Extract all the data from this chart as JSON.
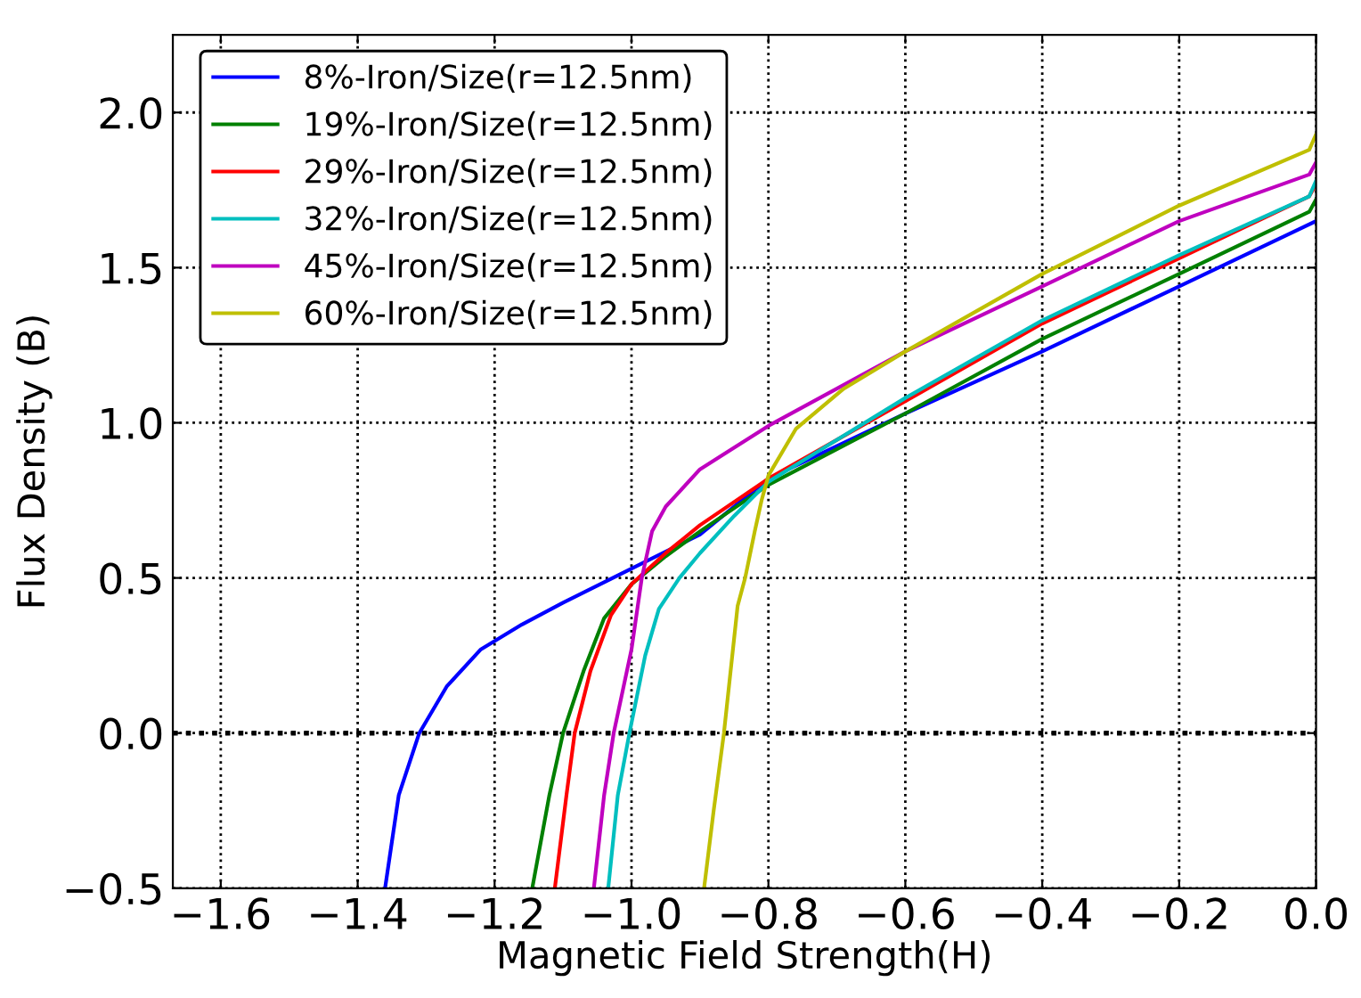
{
  "chart_data": {
    "type": "line",
    "xlabel": "Magnetic Field Strength(H)",
    "ylabel": "Flux Density (B)",
    "xlim": [
      -1.67,
      0.0
    ],
    "ylim": [
      -0.5,
      2.25
    ],
    "xticks": [
      {
        "value": -1.6,
        "label": "−1.6"
      },
      {
        "value": -1.4,
        "label": "−1.4"
      },
      {
        "value": -1.2,
        "label": "−1.2"
      },
      {
        "value": -1.0,
        "label": "−1.0"
      },
      {
        "value": -0.8,
        "label": "−0.8"
      },
      {
        "value": -0.6,
        "label": "−0.6"
      },
      {
        "value": -0.4,
        "label": "−0.4"
      },
      {
        "value": -0.2,
        "label": "−0.2"
      },
      {
        "value": 0.0,
        "label": "0.0"
      }
    ],
    "yticks": [
      {
        "value": -0.5,
        "label": "−0.5"
      },
      {
        "value": 0.0,
        "label": "0.0"
      },
      {
        "value": 0.5,
        "label": "0.5"
      },
      {
        "value": 1.0,
        "label": "1.0"
      },
      {
        "value": 1.5,
        "label": "1.5"
      },
      {
        "value": 2.0,
        "label": "2.0"
      }
    ],
    "grid": true,
    "legend": "top left",
    "marker": "none",
    "line_style": "solid",
    "ref_lines": [
      {
        "axis": "y",
        "value": 0,
        "color": "#000000",
        "line_style": "dotted"
      }
    ],
    "series": [
      {
        "name": "8%-Iron/Size(r=12.5nm)",
        "color": "#0000ff",
        "x": [
          -1.36,
          -1.34,
          -1.31,
          -1.27,
          -1.22,
          -1.16,
          -1.1,
          -1.0,
          -0.9,
          -0.8,
          -0.6,
          -0.4,
          -0.2,
          0.0
        ],
        "values": [
          -0.5,
          -0.2,
          0.0,
          0.15,
          0.27,
          0.35,
          0.42,
          0.53,
          0.64,
          0.82,
          1.03,
          1.23,
          1.44,
          1.65
        ]
      },
      {
        "name": "19%-Iron/Size(r=12.5nm)",
        "color": "#008000",
        "x": [
          -1.145,
          -1.12,
          -1.1,
          -1.07,
          -1.04,
          -1.0,
          -0.95,
          -0.9,
          -0.8,
          -0.6,
          -0.4,
          -0.2,
          -0.01,
          0.0
        ],
        "values": [
          -0.5,
          -0.2,
          0.0,
          0.2,
          0.37,
          0.48,
          0.57,
          0.65,
          0.8,
          1.03,
          1.27,
          1.48,
          1.68,
          1.72
        ]
      },
      {
        "name": "29%-Iron/Size(r=12.5nm)",
        "color": "#ff0000",
        "x": [
          -1.112,
          -1.095,
          -1.083,
          -1.06,
          -1.03,
          -1.0,
          -0.95,
          -0.9,
          -0.8,
          -0.6,
          -0.4,
          -0.2,
          -0.01,
          0.0
        ],
        "values": [
          -0.5,
          -0.2,
          0.0,
          0.2,
          0.38,
          0.48,
          0.58,
          0.67,
          0.82,
          1.07,
          1.32,
          1.53,
          1.73,
          1.77
        ]
      },
      {
        "name": "32%-Iron/Size(r=12.5nm)",
        "color": "#00bfbf",
        "x": [
          -1.034,
          -1.02,
          -1.003,
          -0.98,
          -0.96,
          -0.93,
          -0.9,
          -0.85,
          -0.8,
          -0.6,
          -0.4,
          -0.2,
          -0.01,
          0.0
        ],
        "values": [
          -0.5,
          -0.2,
          0.0,
          0.25,
          0.4,
          0.5,
          0.58,
          0.7,
          0.81,
          1.08,
          1.33,
          1.54,
          1.73,
          1.78
        ]
      },
      {
        "name": "45%-Iron/Size(r=12.5nm)",
        "color": "#bf00bf",
        "x": [
          -1.055,
          -1.04,
          -1.026,
          -1.0,
          -0.985,
          -0.97,
          -0.95,
          -0.9,
          -0.8,
          -0.6,
          -0.4,
          -0.2,
          -0.01,
          0.0
        ],
        "values": [
          -0.5,
          -0.2,
          0.0,
          0.27,
          0.5,
          0.65,
          0.73,
          0.85,
          0.99,
          1.23,
          1.44,
          1.65,
          1.8,
          1.84
        ]
      },
      {
        "name": "60%-Iron/Size(r=12.5nm)",
        "color": "#bfbf00",
        "x": [
          -0.894,
          -0.88,
          -0.865,
          -0.845,
          -0.834,
          -0.82,
          -0.81,
          -0.8,
          -0.76,
          -0.69,
          -0.6,
          -0.4,
          -0.2,
          -0.01,
          0.0
        ],
        "values": [
          -0.5,
          -0.25,
          0.0,
          0.41,
          0.5,
          0.65,
          0.75,
          0.83,
          0.98,
          1.11,
          1.23,
          1.48,
          1.7,
          1.88,
          1.93
        ]
      }
    ]
  }
}
